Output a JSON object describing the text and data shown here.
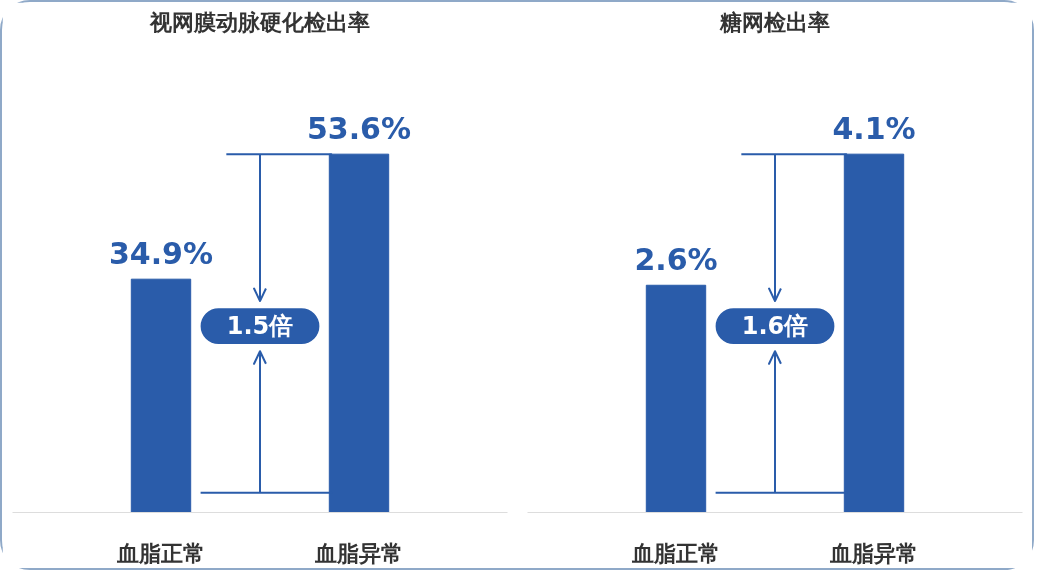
{
  "chart_data": [
    {
      "type": "bar",
      "title": "视网膜动脉硬化检出率",
      "categories": [
        "血脂正常",
        "血脂异常"
      ],
      "values": [
        34.9,
        53.6
      ],
      "color": "#2a5caa",
      "value_labels": [
        "34.9%",
        "53.6%"
      ],
      "annotations": [
        "1.5倍"
      ]
    },
    {
      "type": "bar",
      "title": "糖网检出率",
      "categories": [
        "血脂正常",
        "血脂异常"
      ],
      "values": [
        2.6,
        4.1
      ],
      "color": "#2a5caa",
      "value_labels": [
        "2.6%",
        "4.1%"
      ],
      "annotations": [
        "1.6倍"
      ]
    }
  ]
}
